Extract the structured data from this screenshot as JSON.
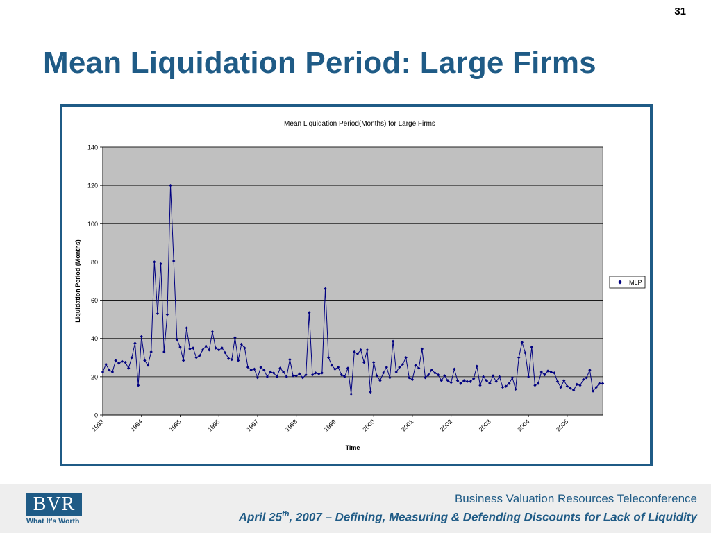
{
  "slide": {
    "number": "31",
    "title": "Mean Liquidation Period: Large Firms"
  },
  "footer": {
    "line1": "Business Valuation Resources Teleconference",
    "line2_prefix": "April 25",
    "line2_sup": "th",
    "line2_suffix": ", 2007 – Defining, Measuring & Defending Discounts for Lack of Liquidity",
    "logo_text": "BVR",
    "logo_tagline": "What It's Worth"
  },
  "colors": {
    "brand": "#1f5b86",
    "series": "#000080",
    "plot_bg": "#c0c0c0"
  },
  "chart_data": {
    "type": "line",
    "title": "Mean Liquidation Period(Months) for Large Firms",
    "xlabel": "Time",
    "ylabel": "Liquidation Period (Months)",
    "ylim": [
      0,
      140
    ],
    "yticks": [
      0,
      20,
      40,
      60,
      80,
      100,
      120,
      140
    ],
    "grid": true,
    "legend": "right",
    "x_tick_labels": [
      "1993",
      "1994",
      "1995",
      "1996",
      "1997",
      "1998",
      "1999",
      "2000",
      "2001",
      "2002",
      "2003",
      "2004",
      "2005"
    ],
    "series": [
      {
        "name": "MLP",
        "marker": "diamond",
        "values": [
          22.5,
          26.5,
          23.5,
          22.5,
          28.5,
          27,
          28,
          27.5,
          24.5,
          30,
          37.5,
          15.5,
          41,
          28.5,
          26,
          33,
          80,
          53,
          79,
          33,
          52.5,
          120,
          80.5,
          39.5,
          35.5,
          28.5,
          45.5,
          34.5,
          35,
          30,
          31,
          34,
          36,
          34,
          43.5,
          35,
          34,
          35,
          32.5,
          29.5,
          29,
          40.5,
          28.5,
          37,
          35,
          25,
          23.5,
          24,
          19.5,
          25,
          23.5,
          20,
          22.5,
          22,
          20,
          24.5,
          22.5,
          20,
          29,
          20.5,
          20.5,
          21.5,
          19.5,
          21,
          53.5,
          21,
          22,
          21.5,
          22,
          66,
          30,
          26,
          24,
          25,
          21,
          20,
          24.5,
          11,
          33,
          32,
          34,
          27.5,
          34,
          12,
          27.5,
          20.5,
          18,
          22,
          25,
          19.5,
          38.5,
          22.5,
          25,
          26.5,
          30,
          19.5,
          18.5,
          26,
          24.5,
          34.5,
          19.5,
          21,
          23.5,
          22,
          21,
          18,
          20.5,
          18,
          17,
          24,
          18,
          16.5,
          18,
          17.5,
          17.5,
          19,
          25.5,
          15.5,
          20,
          18,
          16.5,
          20.5,
          17.5,
          20,
          14.5,
          15,
          16.5,
          19.5,
          13.5,
          30,
          38,
          32.5,
          20,
          35.5,
          15.5,
          16.5,
          22.5,
          21,
          23,
          22.5,
          22,
          17.5,
          14.5,
          18,
          15,
          14,
          13,
          16,
          15.5,
          18.5,
          19.5,
          23.5,
          12.5,
          14.5,
          16.5,
          16.5
        ]
      }
    ]
  }
}
